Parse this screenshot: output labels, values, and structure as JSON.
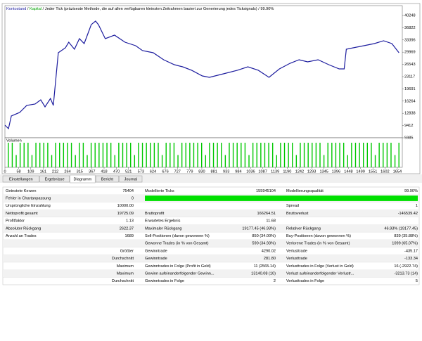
{
  "chart_data": {
    "type": "line",
    "header": [
      "Kontostand",
      "Kapital",
      "Jeder Tick (präziseste Methode, die auf allen verfügbaren kleinsten Zeitrahmen basiert zur Generierung jedes Ticksignals)",
      "99.90%"
    ],
    "separator": " / ",
    "series": [
      {
        "name": "Kontostand",
        "color": "#1c1c9e",
        "x": [
          0,
          15,
          27,
          62,
          92,
          127,
          151,
          169,
          192,
          204,
          225,
          255,
          269,
          293,
          314,
          334,
          364,
          382,
          394,
          423,
          462,
          506,
          551,
          580,
          625,
          669,
          714,
          749,
          787,
          832,
          862,
          921,
          980,
          1024,
          1068,
          1113,
          1157,
          1202,
          1240,
          1276,
          1320,
          1365,
          1409,
          1430,
          1439,
          1468,
          1513,
          1557,
          1596,
          1631,
          1661
        ],
        "values": [
          9530,
          8545,
          12090,
          13075,
          15050,
          15440,
          16620,
          14650,
          17010,
          15050,
          29810,
          31190,
          32760,
          30790,
          33750,
          32370,
          37690,
          38670,
          37690,
          33750,
          34740,
          32760,
          31780,
          30400,
          29810,
          27840,
          26460,
          25870,
          24890,
          23310,
          22920,
          23900,
          24890,
          25870,
          24890,
          22920,
          25280,
          26850,
          27840,
          27250,
          27840,
          26460,
          25280,
          25280,
          30790,
          31190,
          31780,
          32370,
          33160,
          32370,
          29810
        ]
      }
    ],
    "xlim": [
      0,
      1675
    ],
    "ylim": [
      5985,
      43000
    ],
    "yticks": [
      40248,
      36822,
      33396,
      29969,
      26543,
      23117,
      19691,
      16264,
      12838,
      9412,
      5985
    ],
    "xticks": [
      0,
      58,
      109,
      161,
      212,
      264,
      315,
      367,
      418,
      470,
      521,
      573,
      624,
      676,
      727,
      779,
      830,
      881,
      933,
      984,
      1036,
      1087,
      1139,
      1190,
      1242,
      1293,
      1345,
      1396,
      1448,
      1499,
      1551,
      1602,
      1654
    ],
    "volume": {
      "name": "Volumen",
      "color": "#00c800",
      "ylim": [
        0,
        2
      ],
      "values": [
        2,
        2,
        1,
        2,
        2,
        2,
        1,
        2,
        2,
        2,
        2,
        1,
        2,
        2,
        2,
        2,
        2,
        1,
        2,
        2,
        1,
        2,
        2,
        2,
        2,
        2,
        2,
        1,
        2,
        2,
        2,
        2,
        1,
        2,
        2,
        2,
        2,
        2,
        2,
        1,
        2,
        2,
        2,
        1,
        2,
        2,
        2,
        2,
        2,
        2,
        1,
        2,
        2,
        2,
        2,
        1,
        2,
        2,
        2,
        2,
        2,
        1,
        2,
        2,
        2,
        2,
        2,
        2,
        1,
        2,
        2,
        2,
        2,
        1,
        2,
        2,
        2,
        2,
        2,
        2,
        1,
        2,
        2,
        2,
        2,
        2,
        1,
        2,
        2,
        2,
        2,
        2,
        2,
        1,
        2,
        2,
        2,
        2,
        1,
        2
      ]
    }
  },
  "tabs": [
    "Einstellungen",
    "Ergebnisse",
    "Diagramm",
    "Bericht",
    "Journal"
  ],
  "active_tab": 2,
  "table": {
    "rows": [
      [
        "Getestete Kerzen",
        "75404",
        "Modellierte Ticks",
        "155945104",
        "Modellierungsqualität",
        "99.90%"
      ],
      [
        "Fehler in Chartanpassung",
        "0",
        null,
        null,
        null,
        null
      ],
      [
        "Ursprüngliche Einzahlung",
        "10000.00",
        null,
        null,
        "Spread",
        "1"
      ],
      [
        "Nettoprofit gesamt",
        "19725.09",
        "Bruttoprofit",
        "166264.51",
        "Bruttoverlust",
        "-146539.42"
      ],
      [
        "Profitfaktor",
        "1.13",
        "Erwartetes Ergebnis",
        "11.68",
        null,
        null
      ],
      [
        "Absoluter Rückgang",
        "2622.37",
        "Maximaler Rückgang",
        "19177.45 (46.93%)",
        "Relativer Rückgang",
        "46.93% (19177.45)"
      ],
      [
        "Anzahl an Trades",
        "1689",
        "Sell-Positionen (davon gewonnen %)",
        "850 (34.00%)",
        "Buy-Positionen (davon gewonnen %)",
        "839 (35.88%)"
      ],
      [
        null,
        null,
        "Gewonne Trades (in % von Gesamt)",
        "590 (34.93%)",
        "Verlorene Trades (in % von Gesamt)",
        "1099 (65.07%)"
      ],
      [
        null,
        "Größter",
        "Gewinntrade",
        "4290.02",
        "Verlusttrade",
        "-435.17"
      ],
      [
        null,
        "Durchschnitt",
        "Gewinntrade",
        "281.80",
        "Verlusttrade",
        "-133.34"
      ],
      [
        null,
        "Maximum",
        "Gewinntrades in Folge (Profit in Geld)",
        "11 (2565.14)",
        "Verlusttrades in Folge (Verlust in Geld)",
        "16 (-2922.74)"
      ],
      [
        null,
        "Maximum",
        "Gewinn aufeinanderfolgender Gewinn...",
        "13140.08 (10)",
        "Verlust aufeinanderfolgender Verlustr...",
        "-3213.73 (14)"
      ],
      [
        null,
        "Durchschnitt",
        "Gewinntrades in Folge",
        "2",
        "Verlusttrades in Folge",
        "5"
      ]
    ]
  }
}
